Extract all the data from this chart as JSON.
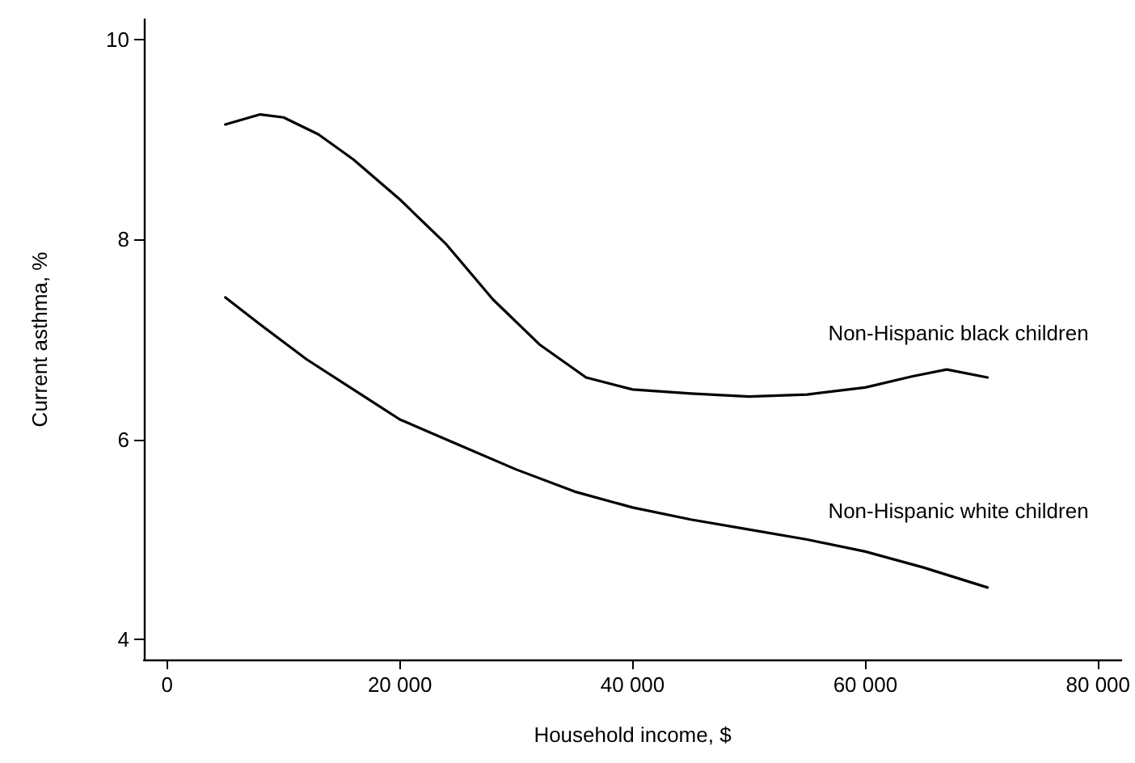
{
  "chart_data": {
    "type": "line",
    "xlabel": "Household income, $",
    "ylabel": "Current asthma, %",
    "xlim": [
      -2000,
      82000
    ],
    "xticks": [
      0,
      {
        "value": 20000,
        "label": "20 000"
      },
      {
        "value": 40000,
        "label": "40 000"
      },
      {
        "value": 60000,
        "label": "60 000"
      },
      {
        "value": 80000,
        "label": "80 000"
      }
    ],
    "ylim": [
      3.8,
      10.2
    ],
    "yticks": [
      4,
      6,
      8,
      10
    ],
    "marker": "none",
    "line_style": "solid",
    "series": [
      {
        "name": "Non-Hispanic black children",
        "color": "#000000",
        "x": [
          5000,
          8000,
          10000,
          13000,
          16000,
          20000,
          24000,
          28000,
          32000,
          36000,
          40000,
          45000,
          50000,
          55000,
          60000,
          64000,
          67000,
          70500
        ],
        "values": [
          9.15,
          9.25,
          9.22,
          9.05,
          8.8,
          8.4,
          7.95,
          7.4,
          6.95,
          6.62,
          6.5,
          6.46,
          6.43,
          6.45,
          6.52,
          6.63,
          6.7,
          6.62
        ]
      },
      {
        "name": "Non-Hispanic white children",
        "color": "#000000",
        "x": [
          5000,
          8000,
          12000,
          16000,
          20000,
          25000,
          30000,
          35000,
          40000,
          45000,
          50000,
          55000,
          60000,
          65000,
          70500
        ],
        "values": [
          7.42,
          7.15,
          6.8,
          6.5,
          6.2,
          5.95,
          5.7,
          5.48,
          5.32,
          5.2,
          5.1,
          5.0,
          4.88,
          4.72,
          4.52
        ]
      }
    ]
  }
}
